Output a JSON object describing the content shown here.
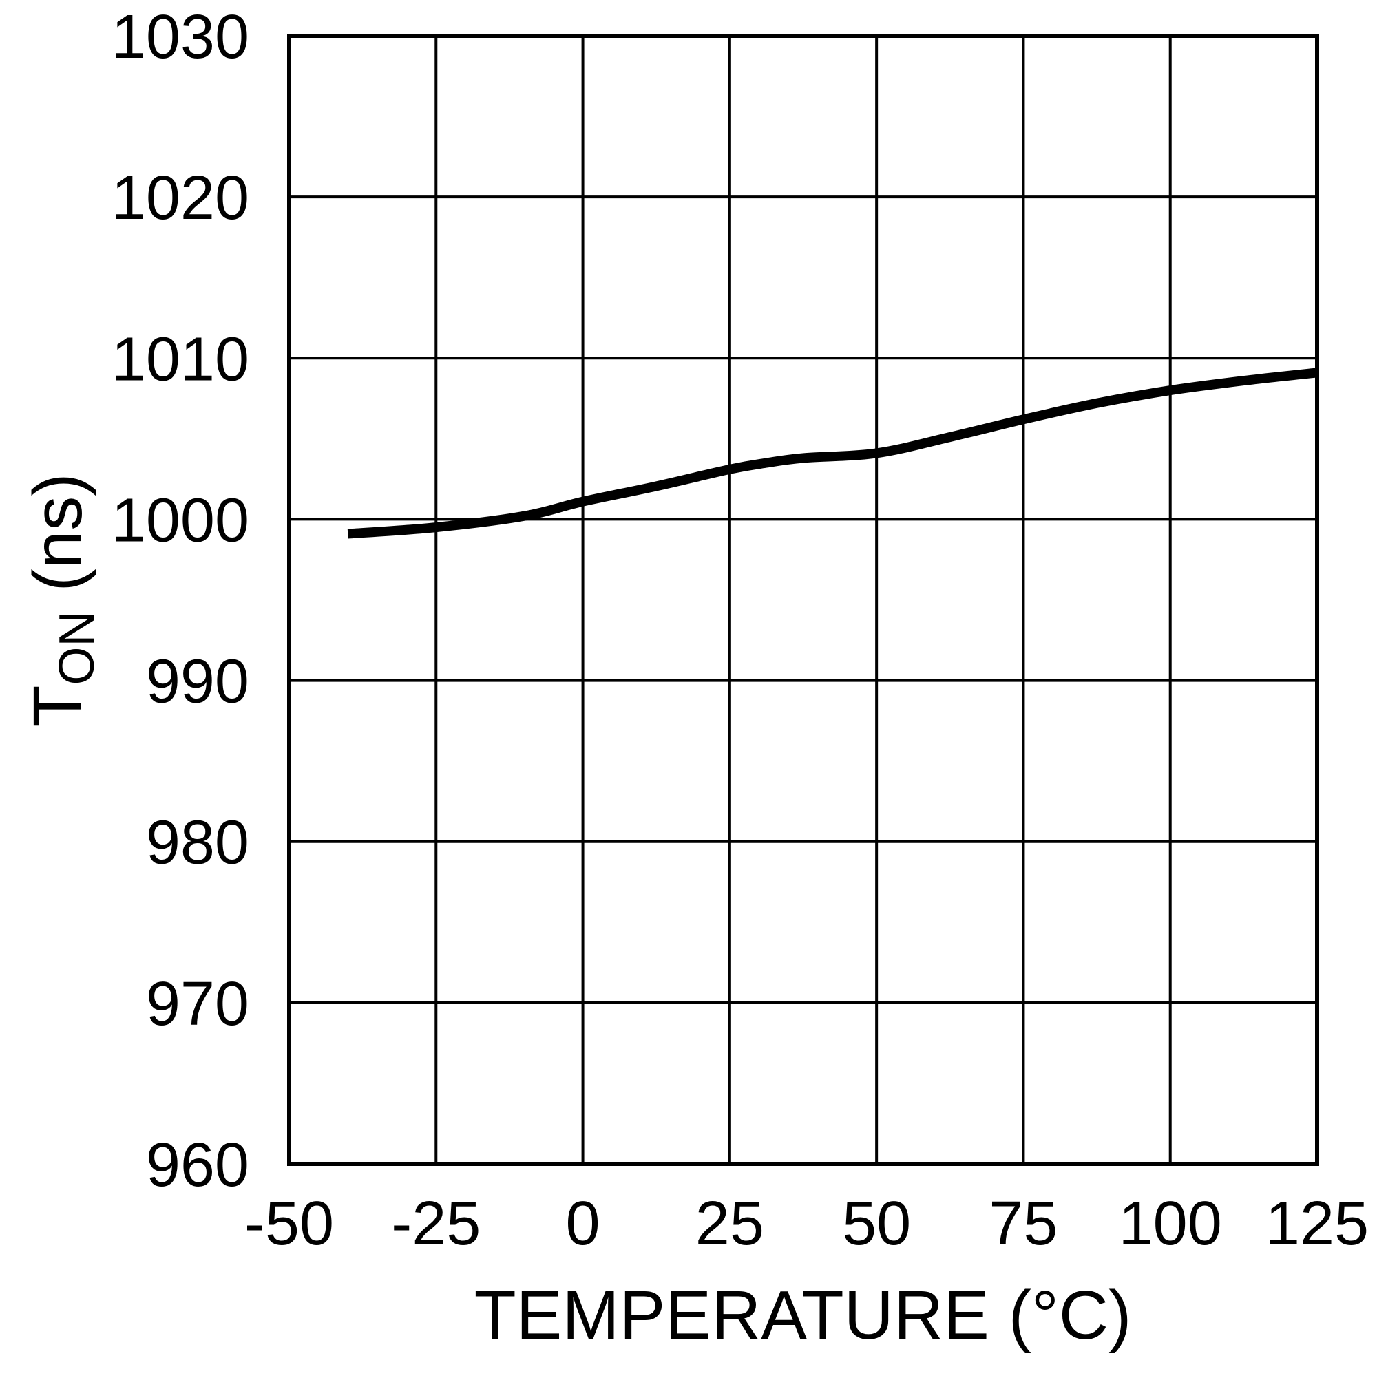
{
  "chart_data": {
    "type": "line",
    "title": "",
    "xlabel": "TEMPERATURE (°C)",
    "ylabel": "T_ON (ns)",
    "ylabel_main": "T",
    "ylabel_sub": "ON",
    "ylabel_unit": " (ns)",
    "xlim": [
      -50,
      125
    ],
    "ylim": [
      960,
      1030
    ],
    "xticks": [
      -50,
      -25,
      0,
      25,
      50,
      75,
      100,
      125
    ],
    "yticks": [
      960,
      970,
      980,
      990,
      1000,
      1010,
      1020,
      1030
    ],
    "xtick_labels": [
      "-50",
      "-25",
      "0",
      "25",
      "50",
      "75",
      "100",
      "125"
    ],
    "ytick_labels": [
      "960",
      "970",
      "980",
      "990",
      "1000",
      "1010",
      "1020",
      "1030"
    ],
    "grid": true,
    "legend": null,
    "series": [
      {
        "name": "T_ON",
        "color": "#000000",
        "x": [
          -40,
          -25,
          -10,
          0,
          12.5,
          25,
          31.3,
          37.5,
          50,
          62.5,
          75,
          87.5,
          100,
          112.5,
          125
        ],
        "values": [
          999.1,
          999.5,
          1000.2,
          1001.1,
          1002.05,
          1003.1,
          1003.5,
          1003.8,
          1004.1,
          1005.1,
          1006.2,
          1007.2,
          1008.0,
          1008.6,
          1009.1
        ]
      }
    ]
  },
  "colors": {
    "background": "#ffffff",
    "line": "#000000",
    "grid": "#000000",
    "text": "#000000"
  }
}
